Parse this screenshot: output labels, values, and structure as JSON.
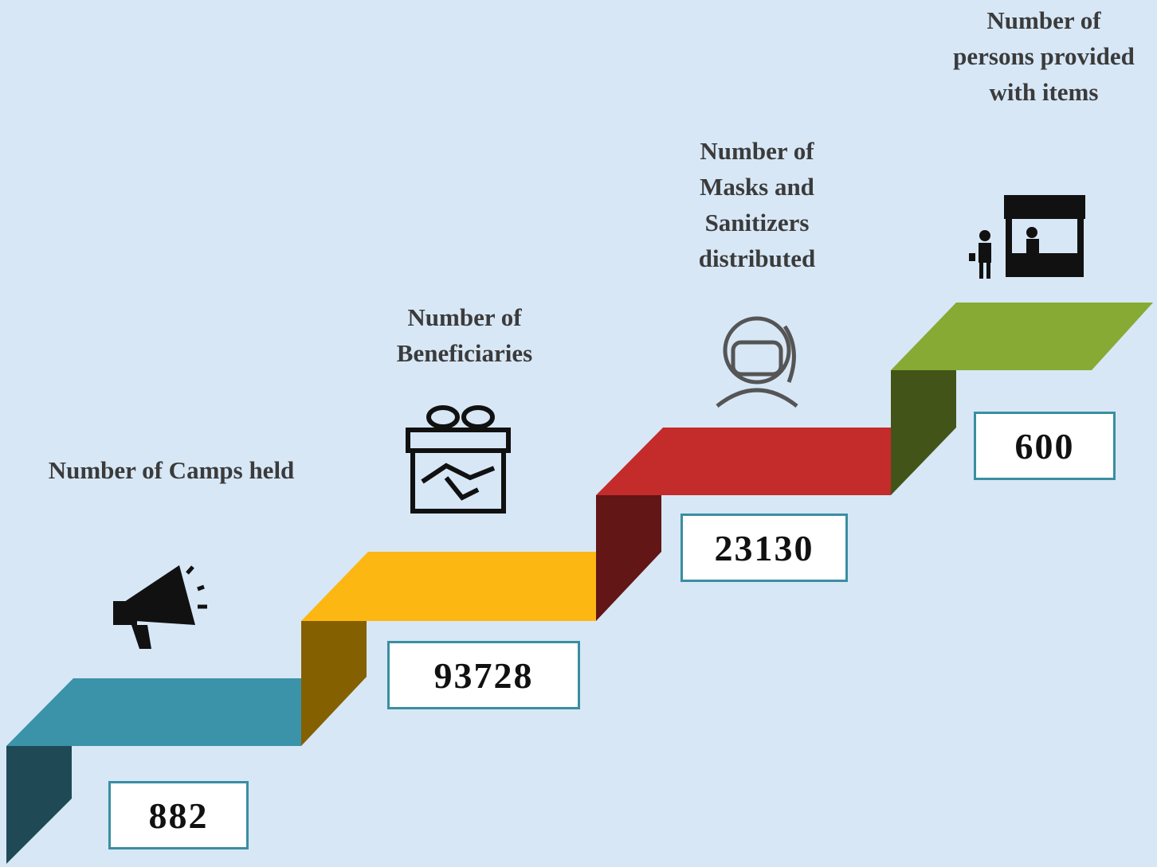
{
  "steps": [
    {
      "label": "Number of Camps held",
      "value": "882"
    },
    {
      "label": "Number of Beneficiaries",
      "value": "93728"
    },
    {
      "label": "Number of Masks and Sanitizers distributed",
      "value": "23130"
    },
    {
      "label": "Number of persons provided with items",
      "value": "600"
    }
  ]
}
